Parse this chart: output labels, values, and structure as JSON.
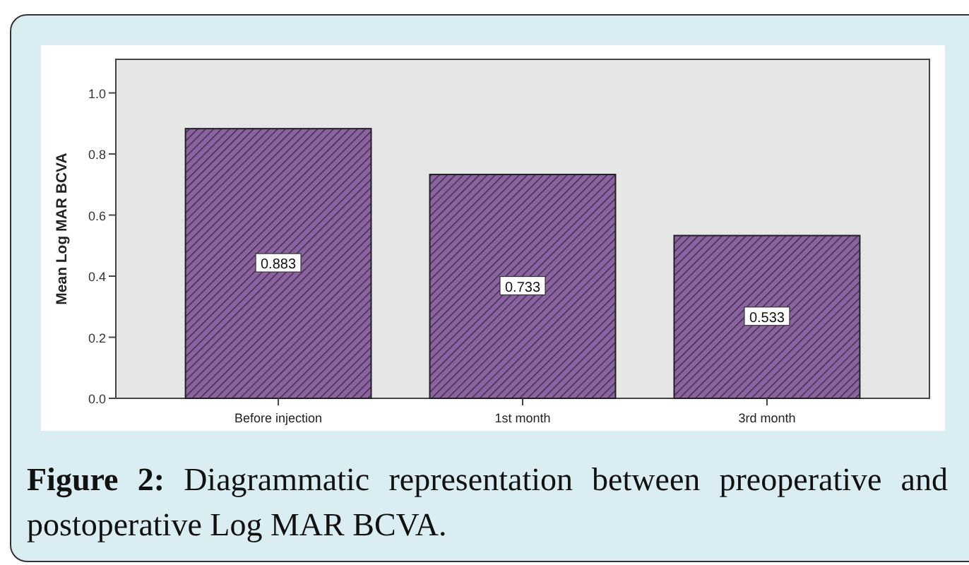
{
  "chart_data": {
    "type": "bar",
    "ylabel": "Mean Log MAR BCVA",
    "categories": [
      "Before injection",
      "1st month",
      "3rd month"
    ],
    "values": [
      0.883,
      0.733,
      0.533
    ],
    "color": "#8a63a0",
    "ylim": [
      0,
      1.11
    ],
    "yticks": [
      {
        "value": 0,
        "label": "0.0"
      },
      {
        "value": 0.2,
        "label": "0.2"
      },
      {
        "value": 0.4,
        "label": "0.4"
      },
      {
        "value": 0.6,
        "label": "0.6"
      },
      {
        "value": 0.8,
        "label": "0.8"
      },
      {
        "value": 1,
        "label": "1.0"
      }
    ],
    "data_labels": true,
    "grid": false,
    "annotations": [
      "Figure 2:",
      "Diagrammatic representation between preoperative and postoperative Log MAR BCVA."
    ]
  }
}
